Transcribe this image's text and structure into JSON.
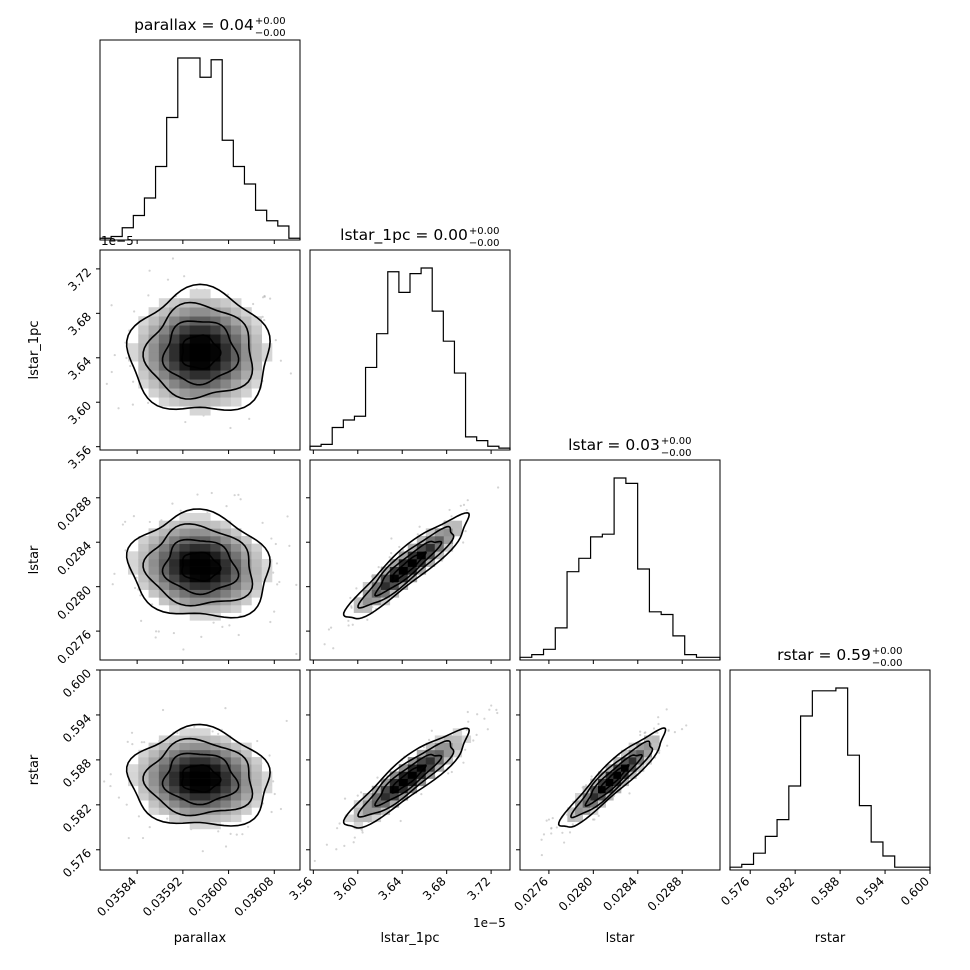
{
  "chart_data": {
    "type": "corner",
    "parameters": [
      {
        "name": "parallax",
        "axis_label": "parallax",
        "title": {
          "main": "parallax = 0.04",
          "sup": "+0.00",
          "sub": "−0.00"
        },
        "range": [
          0.035775,
          0.036125
        ],
        "ticks": [
          "0.03584",
          "0.03592",
          "0.03600",
          "0.03608"
        ],
        "tick_values": [
          0.03584,
          0.03592,
          0.036,
          0.03608
        ],
        "offset_text": ""
      },
      {
        "name": "lstar_1pc",
        "axis_label": "lstar_1pc",
        "title": {
          "main": "lstar_1pc = 0.00",
          "sup": "+0.00",
          "sub": "−0.00"
        },
        "range": [
          3.557,
          3.737
        ],
        "ticks": [
          "3.56",
          "3.60",
          "3.64",
          "3.68",
          "3.72"
        ],
        "tick_values": [
          3.56,
          3.6,
          3.64,
          3.68,
          3.72
        ],
        "offset_text": "1e−5"
      },
      {
        "name": "lstar",
        "axis_label": "lstar",
        "title": {
          "main": "lstar = 0.03",
          "sup": "+0.00",
          "sub": "−0.00"
        },
        "range": [
          0.02734,
          0.02914
        ],
        "ticks": [
          "0.0276",
          "0.0280",
          "0.0284",
          "0.0288"
        ],
        "tick_values": [
          0.0276,
          0.028,
          0.0284,
          0.0288
        ],
        "offset_text": ""
      },
      {
        "name": "rstar",
        "axis_label": "rstar",
        "title": {
          "main": "rstar = 0.59",
          "sup": "+0.00",
          "sub": "−0.00"
        },
        "range": [
          0.5733,
          0.6
        ],
        "ticks": [
          "0.576",
          "0.582",
          "0.588",
          "0.594",
          "0.600"
        ],
        "tick_values": [
          0.576,
          0.582,
          0.588,
          0.594,
          0.6
        ],
        "offset_text": ""
      }
    ],
    "histograms": [
      [
        1,
        2,
        7,
        14,
        24,
        42,
        70,
        104,
        104,
        93,
        103,
        57,
        42,
        32,
        17,
        11,
        8,
        1
      ],
      [
        2,
        3,
        12,
        16,
        18,
        44,
        62,
        95,
        84,
        94,
        97,
        74,
        58,
        41,
        7,
        5,
        2,
        1
      ],
      [
        1,
        2,
        4,
        12,
        33,
        38,
        46,
        47,
        68,
        66,
        34,
        18,
        17,
        9,
        2,
        1,
        1
      ],
      [
        1,
        2,
        6,
        12,
        18,
        30,
        55,
        64,
        64,
        65,
        41,
        23,
        10,
        5,
        1,
        1,
        1
      ]
    ],
    "correlations": {
      "1_0": 0.0,
      "2_0": -0.08,
      "2_1": 0.92,
      "3_0": -0.05,
      "3_1": 0.9,
      "3_2": 0.93
    },
    "centers": [
      0.03595,
      3.645,
      0.02818,
      0.5855
    ],
    "sigmas": [
      6e-05,
      0.027,
      0.00023,
      0.0032
    ],
    "grid": false,
    "colors": {
      "line": "#000000",
      "dense": "#000000",
      "scatter": "#a8a8a8"
    }
  }
}
